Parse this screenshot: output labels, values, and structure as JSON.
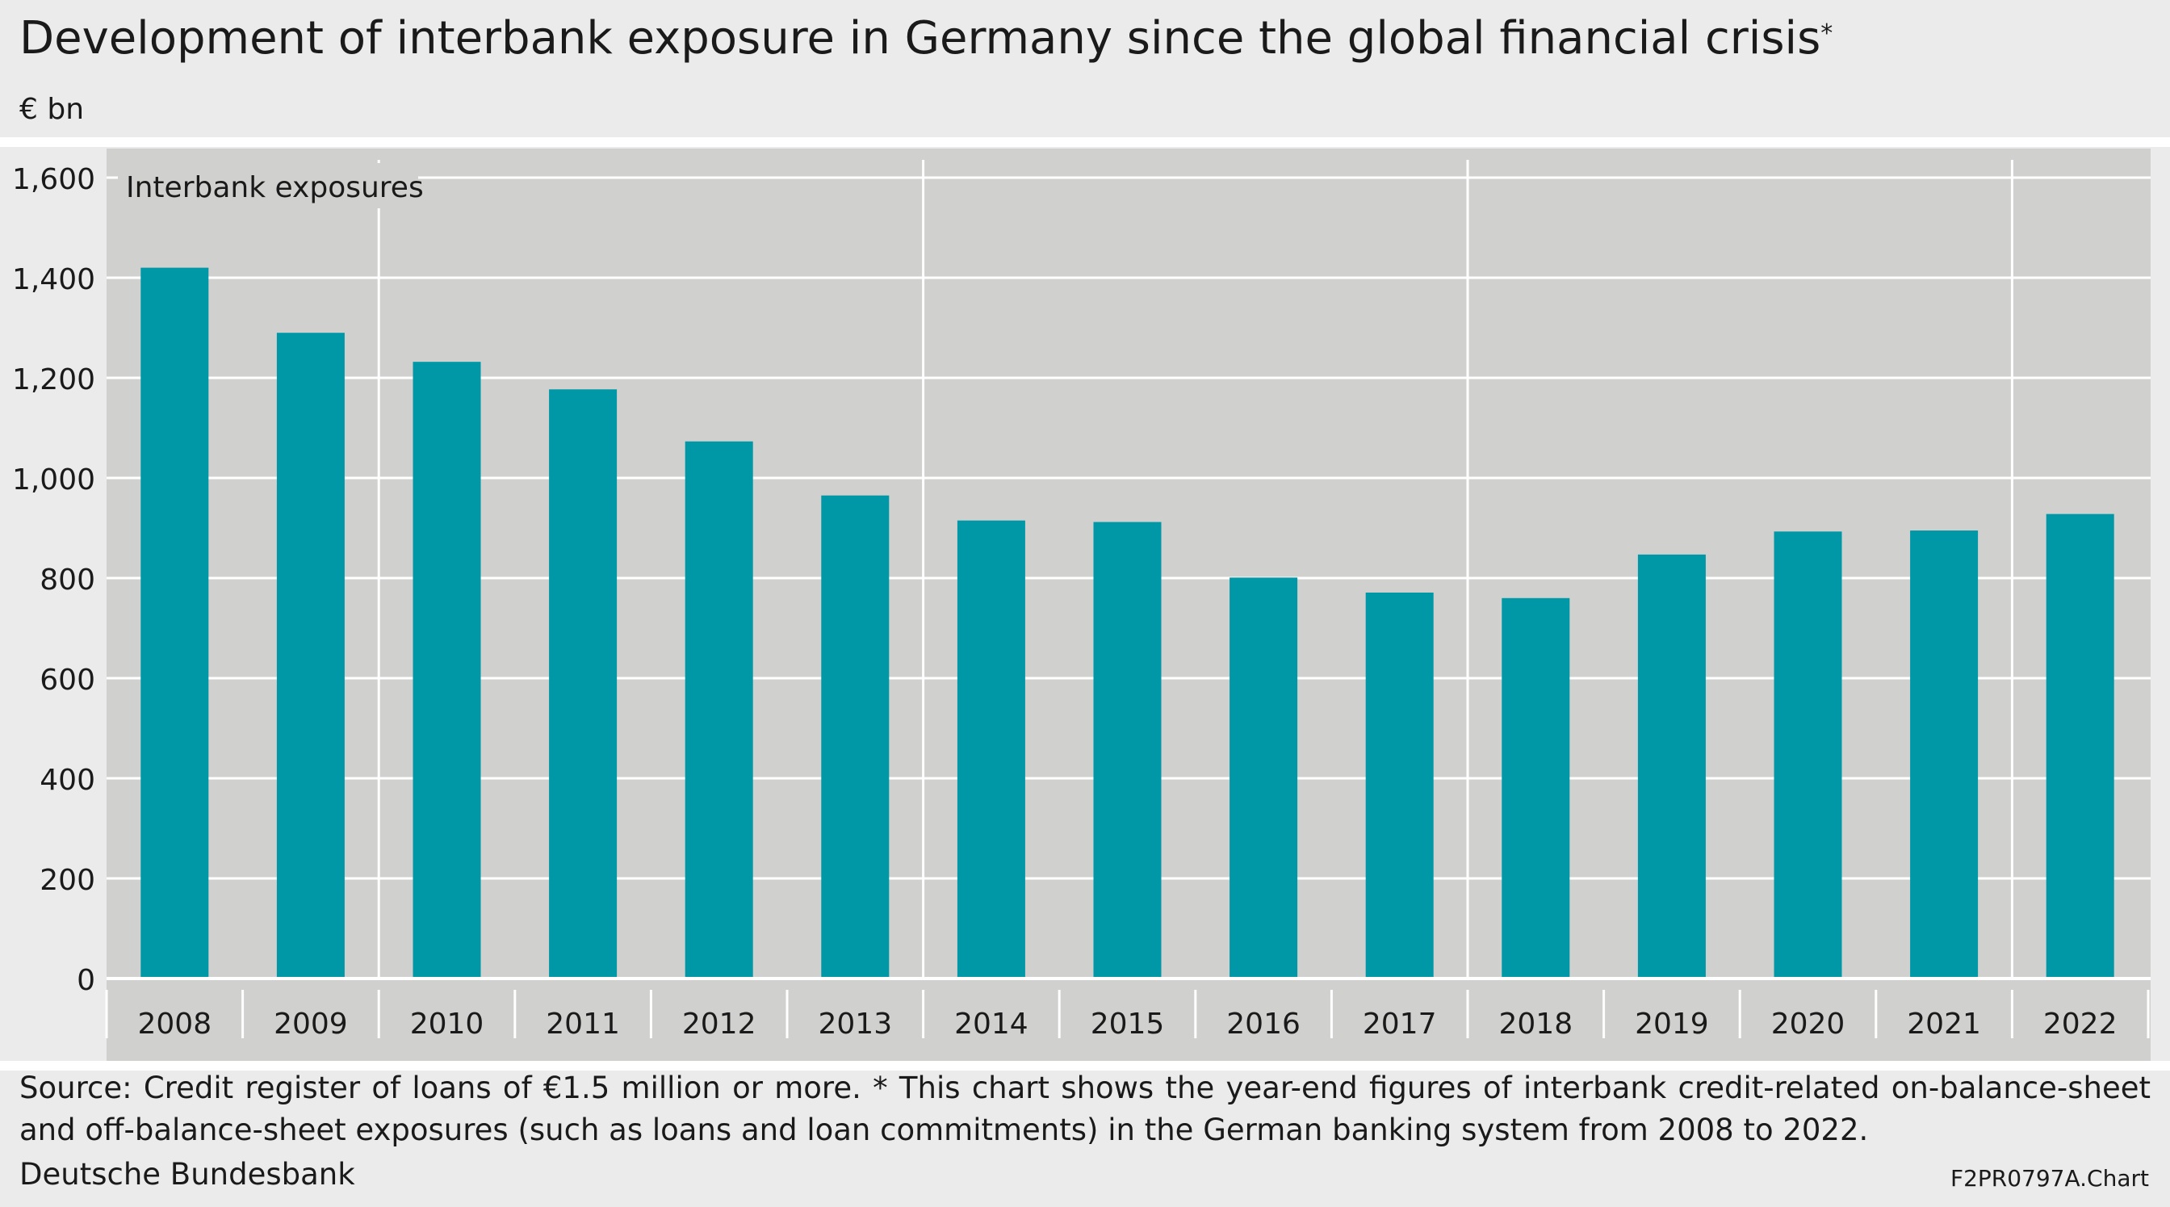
{
  "title": "Development of interbank exposure in Germany since the global financial crisis",
  "title_marker": "*",
  "unit": "€ bn",
  "footer": {
    "source": "Source: Credit register of loans of €1.5 million or more. * This chart shows the year-end figures of interbank credit-related on-balance-sheet and off-balance-sheet exposures (such as loans and loan commitments) in the German banking system from 2008 to 2022.",
    "publisher": "Deutsche Bundesbank",
    "chart_code": "F2PR0797A.Chart"
  },
  "colors": {
    "bar": "#0097a7",
    "plot_background": "#d0d0ce",
    "page_background": "#ebebeb",
    "gridline": "#ffffff"
  },
  "chart_data": {
    "type": "bar",
    "title": "Interbank exposures",
    "xlabel": "",
    "ylabel": "",
    "categories": [
      "2008",
      "2009",
      "2010",
      "2011",
      "2012",
      "2013",
      "2014",
      "2015",
      "2016",
      "2017",
      "2018",
      "2019",
      "2020",
      "2021",
      "2022"
    ],
    "series": [
      {
        "values": [
          1420,
          1290,
          1232,
          1177,
          1073,
          965,
          915,
          912,
          801,
          771,
          760,
          847,
          893,
          895,
          928
        ]
      }
    ],
    "ylim": [
      0,
      1600
    ],
    "yticks": [
      0,
      200,
      400,
      600,
      800,
      1000,
      1200,
      1400,
      1600
    ],
    "ytick_labels": [
      "0",
      "200",
      "400",
      "600",
      "800",
      "1,000",
      "1,200",
      "1,400",
      "1,600"
    ],
    "grid": true,
    "legend": "none"
  }
}
